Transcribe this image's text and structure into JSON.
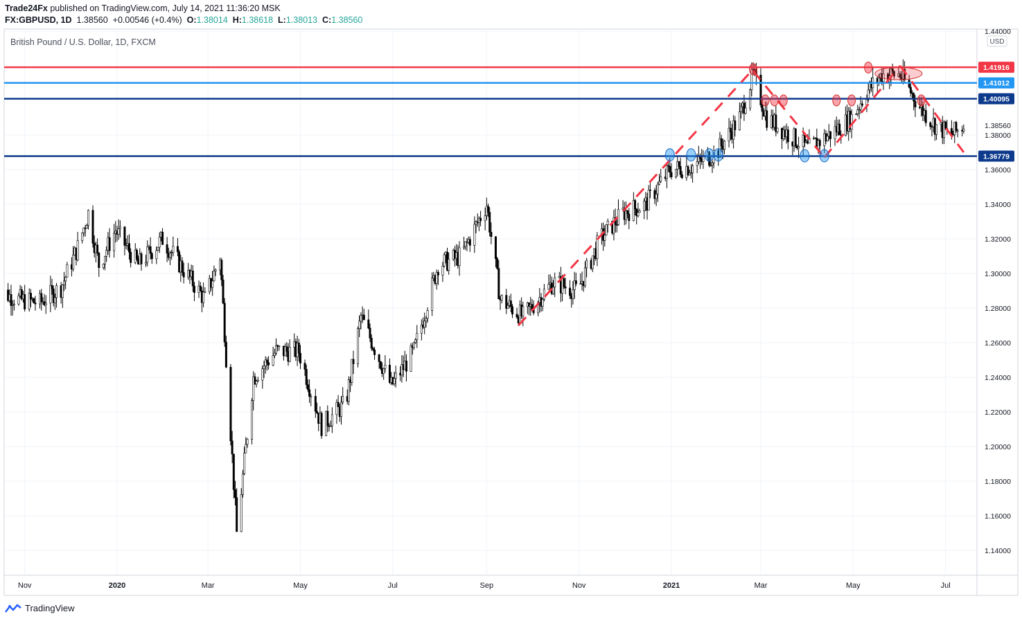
{
  "header": {
    "author": "Trade24Fx",
    "published_text": "published on TradingView.com, July 14, 2021 11:36:20 MSK",
    "symbol": "FX:GBPUSD, 1D",
    "last": "1.38560",
    "change": "+0.00546 (+0.4%)",
    "o_label": "O:",
    "o_value": "1.38014",
    "h_label": "H:",
    "h_value": "1.38618",
    "l_label": "L:",
    "l_value": "1.38013",
    "c_label": "C:",
    "c_value": "1.38560"
  },
  "chart_title": "British Pound / U.S. Dollar, 1D, FXCM",
  "currency_badge": "USD",
  "footer": {
    "brand": "TradingView"
  },
  "colors": {
    "red_level": "#f23645",
    "light_blue_level": "#2196f3",
    "dark_blue_level": "#0d3a8c",
    "trend_dash": "#f23645",
    "candle": "#000000"
  },
  "chart_data": {
    "type": "candlestick",
    "title": "British Pound / U.S. Dollar, 1D, FXCM",
    "ylim": [
      1.125,
      1.44
    ],
    "y_ticks": [
      "1.44000",
      "1.38000",
      "1.36000",
      "1.34000",
      "1.32000",
      "1.30000",
      "1.28000",
      "1.26000",
      "1.24000",
      "1.22000",
      "1.20000",
      "1.18000",
      "1.16000",
      "1.14000"
    ],
    "x_ticks": [
      "Nov",
      "2020",
      "Mar",
      "May",
      "Jul",
      "Sep",
      "Nov",
      "2021",
      "Mar",
      "May",
      "Jul"
    ],
    "current_price_label": "1.38560",
    "horizontal_levels": [
      {
        "value": 1.41916,
        "label": "1.41916",
        "color": "#f23645"
      },
      {
        "value": 1.41012,
        "label": "1.41012",
        "color": "#2196f3"
      },
      {
        "value": 1.40095,
        "label": "1.40095",
        "color": "#0d3a8c"
      },
      {
        "value": 1.36779,
        "label": "1.36779",
        "color": "#0d3a8c"
      }
    ],
    "price_path": [
      [
        "2019-10-14",
        1.29
      ],
      [
        "2019-10-28",
        1.285
      ],
      [
        "2019-11-11",
        1.283
      ],
      [
        "2019-11-25",
        1.292
      ],
      [
        "2019-12-06",
        1.315
      ],
      [
        "2019-12-13",
        1.335
      ],
      [
        "2019-12-20",
        1.305
      ],
      [
        "2019-12-31",
        1.325
      ],
      [
        "2020-01-15",
        1.305
      ],
      [
        "2020-01-31",
        1.32
      ],
      [
        "2020-02-14",
        1.302
      ],
      [
        "2020-02-28",
        1.285
      ],
      [
        "2020-03-09",
        1.31
      ],
      [
        "2020-03-20",
        1.15
      ],
      [
        "2020-03-31",
        1.24
      ],
      [
        "2020-04-15",
        1.255
      ],
      [
        "2020-04-30",
        1.255
      ],
      [
        "2020-05-15",
        1.212
      ],
      [
        "2020-05-31",
        1.225
      ],
      [
        "2020-06-10",
        1.275
      ],
      [
        "2020-06-30",
        1.235
      ],
      [
        "2020-07-15",
        1.255
      ],
      [
        "2020-07-31",
        1.305
      ],
      [
        "2020-08-15",
        1.31
      ],
      [
        "2020-09-01",
        1.34
      ],
      [
        "2020-09-10",
        1.285
      ],
      [
        "2020-09-25",
        1.275
      ],
      [
        "2020-10-15",
        1.295
      ],
      [
        "2020-10-31",
        1.29
      ],
      [
        "2020-11-15",
        1.32
      ],
      [
        "2020-11-30",
        1.335
      ],
      [
        "2020-12-15",
        1.34
      ],
      [
        "2020-12-31",
        1.36
      ],
      [
        "2021-01-15",
        1.362
      ],
      [
        "2021-01-31",
        1.37
      ],
      [
        "2021-02-15",
        1.39
      ],
      [
        "2021-02-24",
        1.415
      ],
      [
        "2021-03-05",
        1.39
      ],
      [
        "2021-03-20",
        1.38
      ],
      [
        "2021-04-01",
        1.372
      ],
      [
        "2021-04-15",
        1.38
      ],
      [
        "2021-04-30",
        1.39
      ],
      [
        "2021-05-10",
        1.405
      ],
      [
        "2021-05-20",
        1.415
      ],
      [
        "2021-06-01",
        1.415
      ],
      [
        "2021-06-15",
        1.395
      ],
      [
        "2021-06-25",
        1.385
      ],
      [
        "2021-07-05",
        1.38
      ],
      [
        "2021-07-13",
        1.3856
      ]
    ],
    "trend_lines": [
      {
        "from": [
          "2020-09-22",
          1.27
        ],
        "to": [
          "2021-02-24",
          1.418
        ]
      },
      {
        "from": [
          "2021-02-24",
          1.417
        ],
        "to": [
          "2021-04-12",
          1.367
        ]
      },
      {
        "from": [
          "2021-04-12",
          1.367
        ],
        "to": [
          "2021-06-01",
          1.42
        ]
      },
      {
        "from": [
          "2021-06-01",
          1.42
        ],
        "to": [
          "2021-07-13",
          1.37
        ]
      }
    ]
  }
}
